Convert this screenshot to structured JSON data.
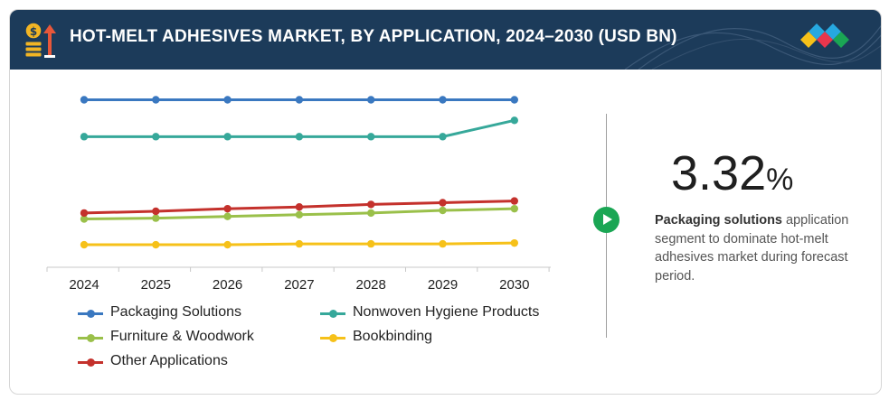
{
  "header": {
    "title": "HOT-MELT ADHESIVES MARKET, BY APPLICATION, 2024–2030 (USD BN)",
    "background": "#1c3b5a"
  },
  "stat": {
    "value": "3.32",
    "unit": "%",
    "highlight": "Packaging solutions",
    "text": " application segment to dominate hot-melt adhesives market during forecast period."
  },
  "icons": {
    "header": "dollar-coins-arrow-icon",
    "play": "play-icon",
    "logo": "diamond-logo-icon"
  },
  "chart_data": {
    "type": "line",
    "categories": [
      "2024",
      "2025",
      "2026",
      "2027",
      "2028",
      "2029",
      "2030"
    ],
    "ylim": [
      0,
      20
    ],
    "grid": false,
    "legend_position": "bottom",
    "series": [
      {
        "name": "Packaging Solutions",
        "color": "#3a78c0",
        "values": [
          19.0,
          19.0,
          19.0,
          19.0,
          19.0,
          19.0,
          19.0
        ]
      },
      {
        "name": "Nonwoven Hygiene Products",
        "color": "#36a89a",
        "values": [
          14.7,
          14.7,
          14.7,
          14.7,
          14.7,
          14.7,
          16.6
        ]
      },
      {
        "name": "Furniture & Woodwork",
        "color": "#9ac04a",
        "values": [
          5.1,
          5.2,
          5.4,
          5.6,
          5.8,
          6.1,
          6.3
        ]
      },
      {
        "name": "Bookbinding",
        "color": "#f6c119",
        "values": [
          2.1,
          2.1,
          2.1,
          2.2,
          2.2,
          2.2,
          2.3
        ]
      },
      {
        "name": "Other Applications",
        "color": "#c4312c",
        "values": [
          5.8,
          6.0,
          6.3,
          6.5,
          6.8,
          7.0,
          7.2
        ]
      }
    ]
  }
}
